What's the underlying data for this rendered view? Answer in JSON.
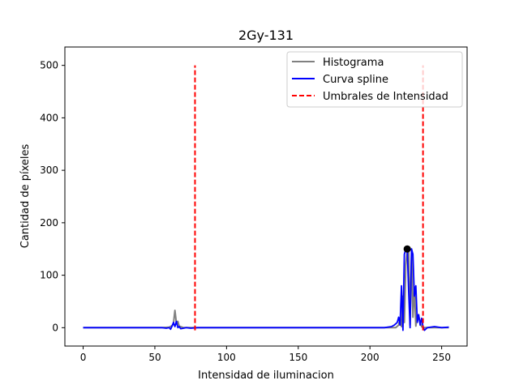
{
  "chart_data": {
    "type": "line",
    "title": "2Gy-131",
    "xlabel": "Intensidad de iluminacion",
    "ylabel": "Cantidad de píxeles",
    "xlim": [
      -12.75,
      267.75
    ],
    "ylim": [
      -35,
      535
    ],
    "xticks": [
      0,
      50,
      100,
      150,
      200,
      250
    ],
    "yticks": [
      0,
      100,
      200,
      300,
      400,
      500
    ],
    "grid": false,
    "legend_position": "top-right",
    "legend": [
      {
        "label": "Histograma",
        "color": "#808080",
        "style": "solid"
      },
      {
        "label": "Curva spline",
        "color": "#0000ff",
        "style": "solid"
      },
      {
        "label": "Umbrales de Intensidad",
        "color": "#ff0000",
        "style": "dashed"
      }
    ],
    "series": [
      {
        "name": "Histograma",
        "color": "#808080",
        "x": [
          0,
          55,
          60,
          62,
          63,
          64,
          65,
          66,
          67,
          70,
          75,
          218,
          220,
          221,
          222,
          223,
          224,
          225,
          226,
          227,
          228,
          229,
          230,
          231,
          232,
          233,
          234,
          235,
          236,
          237,
          240,
          255
        ],
        "y": [
          0,
          0,
          1,
          4,
          8,
          33,
          9,
          12,
          3,
          0,
          0,
          0,
          5,
          18,
          2,
          60,
          10,
          120,
          150,
          148,
          5,
          150,
          20,
          78,
          3,
          25,
          22,
          10,
          2,
          0,
          0,
          0
        ]
      },
      {
        "name": "Curva spline",
        "color": "#0000ff",
        "x": [
          0,
          50,
          55,
          58,
          60,
          61,
          62,
          63,
          64,
          65,
          66,
          67,
          68,
          70,
          72,
          75,
          80,
          100,
          150,
          200,
          210,
          215,
          217,
          219,
          220,
          221,
          222,
          223,
          224,
          225,
          226,
          227,
          228,
          229,
          230,
          231,
          232,
          233,
          234,
          235,
          236,
          237,
          238,
          240,
          245,
          250,
          255
        ],
        "y": [
          0,
          0,
          0,
          -1,
          0,
          -3,
          3,
          10,
          2,
          12,
          0,
          2,
          -2,
          -1,
          0,
          -1,
          0,
          0,
          0,
          0,
          0,
          2,
          5,
          10,
          20,
          5,
          80,
          -5,
          140,
          150,
          150,
          70,
          0,
          150,
          140,
          60,
          80,
          10,
          25,
          5,
          18,
          2,
          -5,
          0,
          2,
          0,
          1
        ]
      }
    ],
    "thresholds": [
      78,
      237
    ],
    "threshold_range": [
      -5,
      500
    ],
    "peak_marker": {
      "x": 226,
      "y": 150,
      "color": "#000000"
    }
  }
}
